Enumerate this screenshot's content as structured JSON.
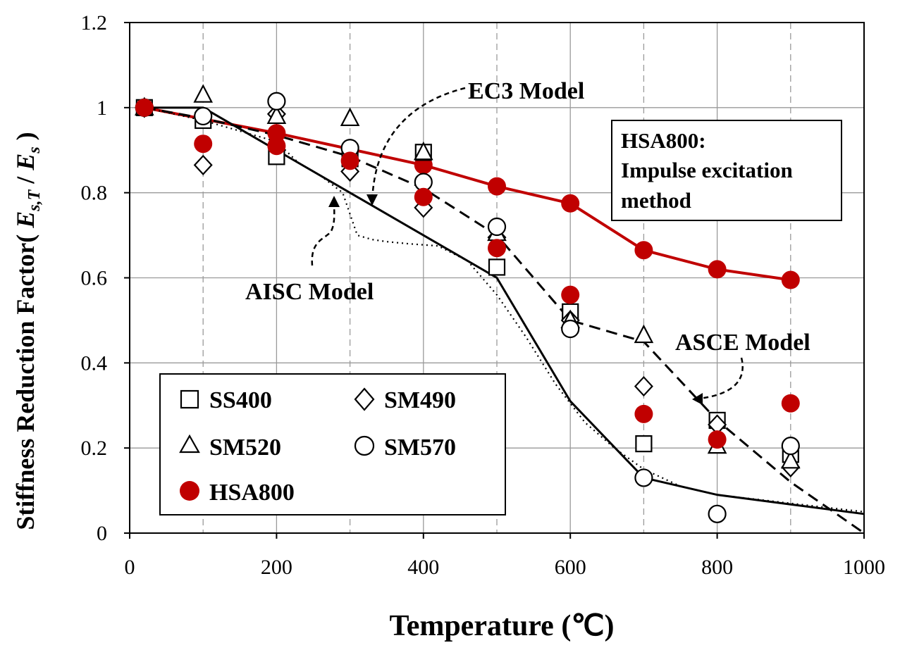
{
  "chart_data": {
    "type": "scatter",
    "xlabel": "Temperature (℃)",
    "ylabel": "Stiffness Reduction Factor",
    "ylabel_symbol": {
      "open": "( ",
      "E1": "E",
      "sub1": "s,T",
      "slash": " / ",
      "E2": "E",
      "sub2": "s",
      "close": " )"
    },
    "xlim": [
      0,
      1000
    ],
    "ylim": [
      0,
      1.2
    ],
    "x_ticks": [
      "0",
      "200",
      "400",
      "600",
      "800",
      "1000"
    ],
    "y_ticks": [
      "0",
      "0.2",
      "0.4",
      "0.6",
      "0.8",
      "1",
      "1.2"
    ],
    "grid": true,
    "series": [
      {
        "name": "SS400",
        "marker": "square",
        "color": "#000000",
        "x": [
          20,
          100,
          200,
          300,
          400,
          500,
          600,
          700,
          800,
          900
        ],
        "y": [
          1.0,
          0.97,
          0.885,
          0.88,
          0.895,
          0.625,
          0.52,
          0.21,
          0.265,
          0.185
        ]
      },
      {
        "name": "SM490",
        "marker": "diamond",
        "color": "#000000",
        "x": [
          20,
          100,
          200,
          300,
          400,
          500,
          600,
          700,
          800,
          900
        ],
        "y": [
          1.0,
          0.865,
          0.985,
          0.85,
          0.765,
          0.695,
          0.5,
          0.345,
          0.255,
          0.155
        ]
      },
      {
        "name": "SM520",
        "marker": "triangle",
        "color": "#000000",
        "x": [
          20,
          100,
          200,
          300,
          400,
          500,
          600,
          700,
          800,
          900
        ],
        "y": [
          1.0,
          1.03,
          0.98,
          0.975,
          0.895,
          0.705,
          0.5,
          0.465,
          0.205,
          0.17
        ]
      },
      {
        "name": "SM570",
        "marker": "circle",
        "color": "#000000",
        "x": [
          20,
          100,
          200,
          300,
          400,
          500,
          600,
          700,
          800,
          900
        ],
        "y": [
          1.0,
          0.98,
          1.015,
          0.905,
          0.825,
          0.72,
          0.48,
          0.13,
          0.045,
          0.205
        ]
      },
      {
        "name": "HSA800",
        "marker": "filled-circle",
        "color": "#c00000",
        "x": [
          20,
          100,
          200,
          300,
          400,
          500,
          600,
          700,
          800,
          900
        ],
        "y": [
          1.0,
          0.915,
          0.91,
          0.875,
          0.79,
          0.67,
          0.56,
          0.28,
          0.22,
          0.305
        ]
      }
    ],
    "curves": [
      {
        "name": "HSA800 impulse",
        "style": "solid-red-markers",
        "color": "#c00000",
        "x": [
          20,
          200,
          400,
          500,
          600,
          700,
          800,
          900
        ],
        "y": [
          1.0,
          0.94,
          0.865,
          0.815,
          0.775,
          0.665,
          0.62,
          0.595
        ]
      },
      {
        "name": "EC3 Model",
        "style": "solid",
        "color": "#000000",
        "x": [
          20,
          100,
          200,
          300,
          400,
          500,
          600,
          700,
          800,
          900,
          1000
        ],
        "y": [
          1.0,
          1.0,
          0.9,
          0.8,
          0.7,
          0.6,
          0.31,
          0.13,
          0.09,
          0.0675,
          0.045
        ]
      },
      {
        "name": "ASCE Model",
        "style": "dashed",
        "color": "#000000",
        "x": [
          20,
          100,
          200,
          300,
          400,
          500,
          600,
          700,
          800,
          900,
          1000
        ],
        "y": [
          1.0,
          0.975,
          0.935,
          0.885,
          0.81,
          0.7,
          0.5,
          0.45,
          0.265,
          0.12,
          0.0
        ]
      },
      {
        "name": "AISC Model",
        "style": "dotted",
        "color": "#000000",
        "x": [
          20,
          100,
          200,
          230,
          260,
          290,
          310,
          330,
          350,
          380,
          420,
          460,
          500,
          540,
          580,
          620,
          660,
          700,
          750,
          800,
          900,
          1000
        ],
        "y": [
          1.0,
          0.97,
          0.92,
          0.87,
          0.84,
          0.8,
          0.7,
          0.69,
          0.685,
          0.68,
          0.675,
          0.64,
          0.56,
          0.46,
          0.35,
          0.26,
          0.2,
          0.15,
          0.11,
          0.09,
          0.07,
          0.05
        ]
      }
    ],
    "annotations": {
      "ec3": "EC3 Model",
      "aisc": "AISC Model",
      "asce": "ASCE Model",
      "box_line1": "HSA800:",
      "box_line2": "Impulse excitation",
      "box_line3": "method"
    },
    "legend_position": "bottom-left"
  }
}
